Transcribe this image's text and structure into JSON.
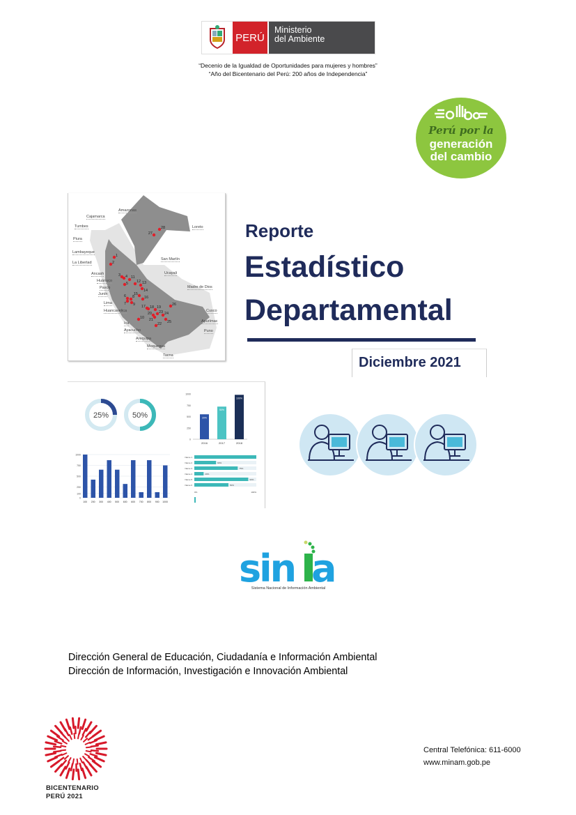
{
  "header": {
    "logo": {
      "country": "PERÚ",
      "ministry_line1": "Ministerio",
      "ministry_line2": "del Ambiente"
    },
    "motto_1": "“Decenio de la Igualdad de Oportunidades para mujeres y hombres”",
    "motto_2": "“Año del Bicentenario del Perú: 200 años de Independencia”"
  },
  "seal": {
    "line1": "Perú por la",
    "line2": "generación",
    "line3": "del cambio",
    "color": "#8dc63f"
  },
  "map": {
    "regions": [
      "Amazonas",
      "Cajamarca",
      "Tumbes",
      "Piura",
      "Lambayeque",
      "La Libertad",
      "Ancash",
      "Huánuco",
      "Pasco",
      "Junín",
      "Lima",
      "Huancavelica",
      "Ica",
      "Ayacucho",
      "Arequipa",
      "Moquegua",
      "Tacna",
      "Loreto",
      "San Martín",
      "Ucayali",
      "Madre de Dios",
      "Cusco",
      "Apurímac",
      "Puno"
    ],
    "markers": [
      "1",
      "2",
      "3",
      "4",
      "5",
      "6",
      "7",
      "8",
      "9",
      "10",
      "11",
      "12",
      "13",
      "14",
      "15",
      "16",
      "17",
      "18",
      "19",
      "20",
      "21",
      "22",
      "23",
      "24",
      "25",
      "26",
      "27",
      "28"
    ],
    "marker_color": "#e0202a"
  },
  "title": {
    "line1": "Reporte",
    "line2": "Estadístico",
    "line3": "Departamental",
    "date": "Diciembre 2021",
    "color": "#1f2b5a"
  },
  "charts_illustration": {
    "donut_1": "25%",
    "donut_2": "50%",
    "bar_top": {
      "categories": [
        "2016",
        "2017",
        "2018"
      ],
      "labels": [
        "20%",
        "50%",
        "100%"
      ],
      "values": [
        550,
        720,
        980
      ],
      "ticks": [
        "1000",
        "750",
        "500",
        "250",
        "0"
      ]
    },
    "bar_bottom": {
      "categories": [
        "100",
        "200",
        "300",
        "400",
        "500",
        "600",
        "600",
        "700",
        "800",
        "900",
        "1000"
      ],
      "values": [
        1000,
        420,
        650,
        870,
        650,
        320,
        870,
        130,
        870,
        130,
        750
      ],
      "ticks": [
        "1000",
        "750",
        "500",
        "250",
        "100",
        "0"
      ]
    },
    "hbar": {
      "names": [
        "Name 1",
        "Name 2",
        "Name 3",
        "Name 4",
        "Name 5",
        "Name 6"
      ],
      "values": [
        100,
        35,
        70,
        15,
        87,
        55
      ],
      "labels": [
        "",
        "60%",
        "75%",
        "20%",
        "90%",
        "50%"
      ],
      "axis": [
        "0%",
        "100%"
      ]
    }
  },
  "sinia": {
    "logo": "sinia",
    "subtitle": "Sistema Nacional de Información Ambiental"
  },
  "departments": {
    "line1": "Dirección General de Educación, Ciudadanía e Información Ambiental",
    "line2": "Dirección de Información, Investigación e Innovación Ambiental"
  },
  "bicentenario": {
    "line1": "BICENTENARIO",
    "line2": "PERÚ 2021"
  },
  "contact": {
    "phone": "Central Telefónica: 611-6000",
    "web": "www.minam.gob.pe"
  }
}
